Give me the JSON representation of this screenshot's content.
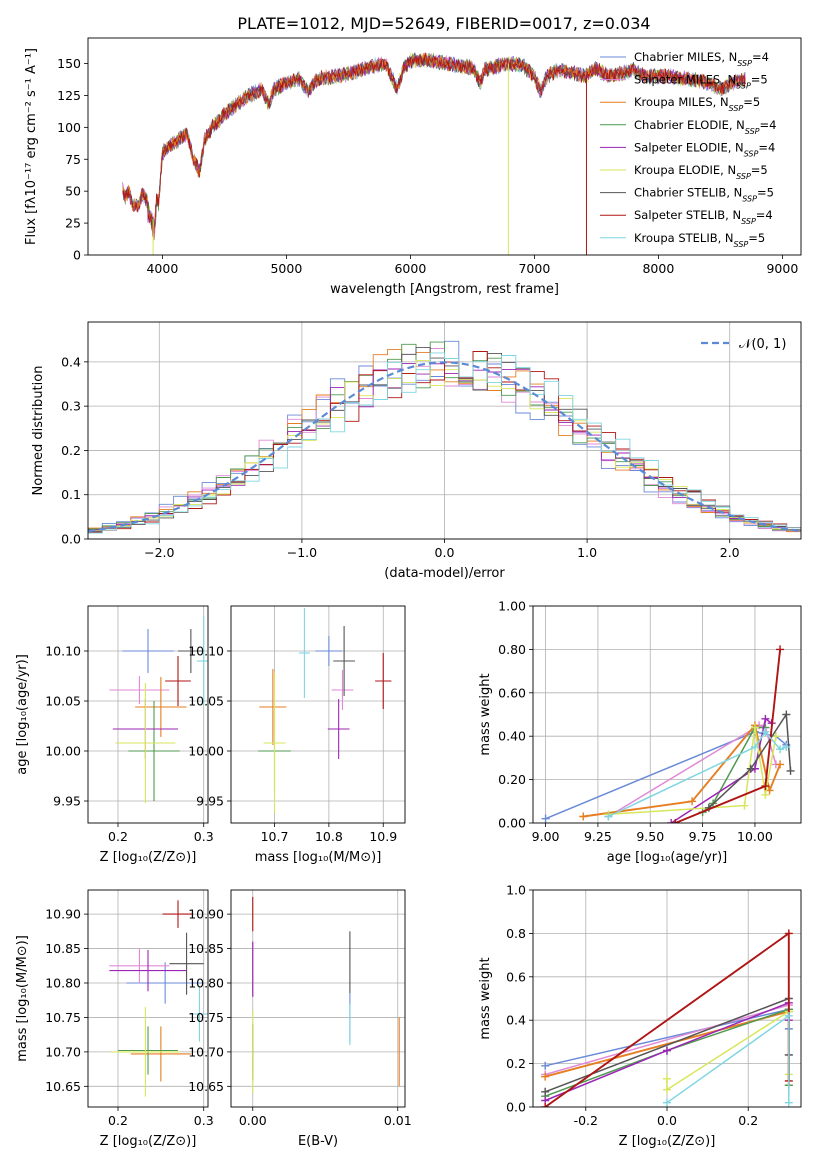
{
  "title": "PLATE=1012, MJD=52649, FIBERID=0017, z=0.034",
  "colors": [
    "#6a8ad8",
    "#e08ad6",
    "#e67e22",
    "#4f9a4f",
    "#9b26b6",
    "#d7e65a",
    "#555555",
    "#b01515",
    "#7fd6e0"
  ],
  "legend_models": [
    {
      "name": "Chabrier MILES",
      "nssp": "4"
    },
    {
      "name": "Salpeter MILES",
      "nssp": "5"
    },
    {
      "name": "Kroupa MILES",
      "nssp": "5"
    },
    {
      "name": "Chabrier ELODIE",
      "nssp": "4"
    },
    {
      "name": "Salpeter ELODIE",
      "nssp": "4"
    },
    {
      "name": "Kroupa ELODIE",
      "nssp": "5"
    },
    {
      "name": "Chabrier STELIB",
      "nssp": "5"
    },
    {
      "name": "Salpeter STELIB",
      "nssp": "4"
    },
    {
      "name": "Kroupa STELIB",
      "nssp": "5"
    }
  ],
  "legend_sub": "SSP",
  "chart_data": [
    {
      "id": "spectrum",
      "type": "line",
      "xlabel": "wavelength [Angstrom, rest frame]",
      "ylabel": "Flux [fλ10⁻¹⁷ erg cm⁻² s⁻¹ A⁻¹]",
      "xlim": [
        3400,
        9150
      ],
      "ylim": [
        0,
        170
      ],
      "xticks": [
        4000,
        5000,
        6000,
        7000,
        8000,
        9000
      ],
      "yticks": [
        0,
        25,
        50,
        75,
        100,
        125,
        150
      ],
      "x": [
        3680,
        3700,
        3730,
        3760,
        3800,
        3840,
        3880,
        3920,
        3934,
        3950,
        3969,
        4000,
        4050,
        4100,
        4150,
        4200,
        4250,
        4300,
        4340,
        4400,
        4500,
        4600,
        4700,
        4800,
        4861,
        4900,
        5000,
        5100,
        5175,
        5250,
        5400,
        5500,
        5600,
        5700,
        5800,
        5893,
        5950,
        6000,
        6100,
        6200,
        6300,
        6400,
        6500,
        6563,
        6600,
        6700,
        6800,
        6900,
        7000,
        7050,
        7100,
        7200,
        7300,
        7400,
        7500,
        7600,
        7700,
        7800,
        7900,
        8000,
        8100,
        8200,
        8300,
        8400,
        8500,
        8600,
        8700
      ],
      "y": [
        52,
        45,
        50,
        40,
        38,
        48,
        42,
        30,
        25,
        45,
        40,
        80,
        85,
        88,
        92,
        95,
        75,
        65,
        90,
        100,
        110,
        118,
        125,
        130,
        118,
        130,
        135,
        138,
        128,
        138,
        140,
        142,
        145,
        148,
        150,
        130,
        148,
        152,
        153,
        152,
        150,
        148,
        147,
        135,
        145,
        148,
        150,
        149,
        140,
        128,
        140,
        145,
        143,
        140,
        146,
        140,
        142,
        145,
        140,
        140,
        140,
        138,
        137,
        135,
        130,
        135,
        138
      ],
      "dips": [
        {
          "x": 6790,
          "to": 0,
          "series": 5
        },
        {
          "x": 7420,
          "to": 0,
          "series": 7
        },
        {
          "x": 3925,
          "to": 0,
          "series": 5
        }
      ]
    },
    {
      "id": "residuals",
      "type": "step",
      "xlabel": "(data-model)/error",
      "ylabel": "Normed distribution",
      "xlim": [
        -2.5,
        2.5
      ],
      "ylim": [
        0,
        0.49
      ],
      "xticks": [
        -2,
        -1,
        0,
        1,
        2
      ],
      "yticks": [
        0.0,
        0.1,
        0.2,
        0.3,
        0.4
      ],
      "grid": true,
      "legend": "𝒩(0, 1)",
      "bin_width": 0.1
    },
    {
      "id": "age-vs-Z",
      "type": "errorbar",
      "xlabel": "Z [log₁₀(Z/Z⊙)]",
      "ylabel": "age  [log₁₀(age/yr)]",
      "xlim": [
        0.165,
        0.305
      ],
      "ylim": [
        9.928,
        10.145
      ],
      "xticks": [
        0.2,
        0.3
      ],
      "yticks": [
        9.95,
        10.0,
        10.05,
        10.1
      ],
      "points": [
        {
          "x": 0.235,
          "y": 10.1,
          "xe": 0.03,
          "ye": 0.022
        },
        {
          "x": 0.225,
          "y": 10.061,
          "xe": 0.035,
          "ye": 0.014
        },
        {
          "x": 0.25,
          "y": 10.044,
          "xe": 0.03,
          "ye": 0.03
        },
        {
          "x": 0.242,
          "y": 10.0,
          "xe": 0.03,
          "ye": 0.05
        },
        {
          "x": 0.232,
          "y": 10.022,
          "xe": 0.038,
          "ye": 0.03
        },
        {
          "x": 0.232,
          "y": 10.008,
          "xe": 0.035,
          "ye": 0.06
        },
        {
          "x": 0.285,
          "y": 10.1,
          "xe": 0.015,
          "ye": 0.022
        },
        {
          "x": 0.27,
          "y": 10.07,
          "xe": 0.015,
          "ye": 0.025
        },
        {
          "x": 0.3,
          "y": 10.09,
          "xe": 0.008,
          "ye": 0.045
        }
      ]
    },
    {
      "id": "age-vs-mass",
      "type": "errorbar",
      "xlabel": "mass [log₁₀(M/M⊙)]",
      "ylabel": "",
      "xlim": [
        10.62,
        10.94
      ],
      "ylim": [
        9.928,
        10.145
      ],
      "xticks": [
        10.7,
        10.8,
        10.9
      ],
      "yticks": [
        9.95,
        10.0,
        10.05,
        10.1
      ],
      "points": [
        {
          "x": 10.8,
          "y": 10.1,
          "xe": 0.025,
          "ye": 0.015
        },
        {
          "x": 10.825,
          "y": 10.061,
          "xe": 0.02,
          "ye": 0.02
        },
        {
          "x": 10.697,
          "y": 10.044,
          "xe": 0.025,
          "ye": 0.038
        },
        {
          "x": 10.7,
          "y": 10.0,
          "xe": 0.03,
          "ye": 0.04
        },
        {
          "x": 10.818,
          "y": 10.022,
          "xe": 0.02,
          "ye": 0.03
        },
        {
          "x": 10.7,
          "y": 10.008,
          "xe": 0.02,
          "ye": 0.07
        },
        {
          "x": 10.828,
          "y": 10.09,
          "xe": 0.02,
          "ye": 0.035
        },
        {
          "x": 10.9,
          "y": 10.07,
          "xe": 0.015,
          "ye": 0.028
        },
        {
          "x": 10.755,
          "y": 10.098,
          "xe": 0.01,
          "ye": 0.045
        }
      ]
    },
    {
      "id": "weight-vs-age",
      "type": "line",
      "xlabel": "age  [log₁₀(age/yr)]",
      "ylabel": "mass weight",
      "xlim": [
        8.94,
        10.22
      ],
      "ylim": [
        0,
        1.0
      ],
      "xticks": [
        9.0,
        9.25,
        9.5,
        9.75,
        10.0
      ],
      "yticks": [
        0.0,
        0.2,
        0.4,
        0.6,
        0.8,
        1.0
      ],
      "grid": true,
      "series": [
        {
          "x": [
            9.0,
            10.0,
            10.1,
            10.15
          ],
          "y": [
            0.02,
            0.42,
            0.4,
            0.36
          ]
        },
        {
          "x": [
            9.3,
            10.02,
            10.05,
            10.1
          ],
          "y": [
            0.03,
            0.45,
            0.44,
            0.27
          ]
        },
        {
          "x": [
            9.18,
            9.7,
            10.0,
            10.07,
            10.12
          ],
          "y": [
            0.03,
            0.1,
            0.45,
            0.15,
            0.27
          ]
        },
        {
          "x": [
            9.75,
            9.8,
            10.0,
            10.05
          ],
          "y": [
            0.05,
            0.09,
            0.44,
            0.44
          ]
        },
        {
          "x": [
            9.6,
            10.0,
            10.05,
            10.08
          ],
          "y": [
            0.0,
            0.25,
            0.48,
            0.46
          ]
        },
        {
          "x": [
            9.3,
            9.95,
            10.0,
            10.05,
            10.1
          ],
          "y": [
            0.04,
            0.08,
            0.44,
            0.13,
            0.4
          ]
        },
        {
          "x": [
            9.78,
            9.98,
            10.15,
            10.17
          ],
          "y": [
            0.07,
            0.25,
            0.5,
            0.24
          ]
        },
        {
          "x": [
            9.62,
            10.05,
            10.12
          ],
          "y": [
            0.0,
            0.17,
            0.8
          ]
        },
        {
          "x": [
            9.3,
            10.0,
            10.05,
            10.12,
            10.15
          ],
          "y": [
            0.03,
            0.35,
            0.42,
            0.34,
            0.35
          ]
        }
      ]
    },
    {
      "id": "mass-vs-Z",
      "type": "errorbar",
      "xlabel": "Z [log₁₀(Z/Z⊙)]",
      "ylabel": "mass [log₁₀(M/M⊙)]",
      "xlim": [
        0.165,
        0.305
      ],
      "ylim": [
        10.62,
        10.935
      ],
      "xticks": [
        0.2,
        0.3
      ],
      "yticks": [
        10.65,
        10.7,
        10.75,
        10.8,
        10.85,
        10.9
      ],
      "points": [
        {
          "x": 0.255,
          "y": 10.8,
          "xe": 0.045,
          "ye": 0.03
        },
        {
          "x": 0.225,
          "y": 10.825,
          "xe": 0.035,
          "ye": 0.025
        },
        {
          "x": 0.25,
          "y": 10.697,
          "xe": 0.035,
          "ye": 0.04
        },
        {
          "x": 0.235,
          "y": 10.702,
          "xe": 0.035,
          "ye": 0.035
        },
        {
          "x": 0.235,
          "y": 10.818,
          "xe": 0.045,
          "ye": 0.03
        },
        {
          "x": 0.232,
          "y": 10.7,
          "xe": 0.04,
          "ye": 0.065
        },
        {
          "x": 0.28,
          "y": 10.828,
          "xe": 0.02,
          "ye": 0.045
        },
        {
          "x": 0.27,
          "y": 10.9,
          "xe": 0.018,
          "ye": 0.02
        },
        {
          "x": 0.295,
          "y": 10.755,
          "xe": 0.012,
          "ye": 0.04
        }
      ]
    },
    {
      "id": "mass-vs-ebv",
      "type": "errorbar",
      "xlabel": "E(B-V)",
      "ylabel": "",
      "xlim": [
        -0.0015,
        0.0105
      ],
      "ylim": [
        10.62,
        10.935
      ],
      "xticks": [
        0.0,
        0.01
      ],
      "yticks": [
        10.65,
        10.7,
        10.75,
        10.8,
        10.85,
        10.9
      ],
      "tick_labels_x": [
        "0.00",
        "0.01"
      ],
      "points": [
        {
          "x": 0.0067,
          "y": 10.75,
          "xe": 0,
          "ye": 0.035
        },
        {
          "x": 0.0,
          "y": 10.82,
          "xe": 0,
          "ye": 0.04
        },
        {
          "x": 0.0101,
          "y": 10.7,
          "xe": 0,
          "ye": 0.05
        },
        {
          "x": 0.0,
          "y": 10.7,
          "xe": 0,
          "ye": 0.04
        },
        {
          "x": 0.0,
          "y": 10.82,
          "xe": 0,
          "ye": 0.04
        },
        {
          "x": 0.0,
          "y": 10.7,
          "xe": 0,
          "ye": 0.06
        },
        {
          "x": 0.0067,
          "y": 10.83,
          "xe": 0,
          "ye": 0.045
        },
        {
          "x": 0.0,
          "y": 10.9,
          "xe": 0,
          "ye": 0.025
        },
        {
          "x": 0.0067,
          "y": 10.74,
          "xe": 0,
          "ye": 0.03
        }
      ]
    },
    {
      "id": "weight-vs-Z",
      "type": "line",
      "xlabel": "Z [log₁₀(Z/Z⊙)]",
      "ylabel": "mass weight",
      "xlim": [
        -0.33,
        0.33
      ],
      "ylim": [
        0,
        1.0
      ],
      "xticks": [
        -0.2,
        0.0,
        0.2
      ],
      "yticks": [
        0.0,
        0.2,
        0.4,
        0.6,
        0.8,
        1.0
      ],
      "grid": true,
      "series": [
        {
          "x": [
            -0.3,
            0.3,
            0.3
          ],
          "y": [
            0.19,
            0.45,
            0.36
          ]
        },
        {
          "x": [
            -0.3,
            0.3,
            0.3
          ],
          "y": [
            0.15,
            0.47,
            0.24
          ]
        },
        {
          "x": [
            -0.3,
            0.3,
            0.3
          ],
          "y": [
            0.14,
            0.44,
            0.1
          ]
        },
        {
          "x": [
            -0.3,
            0.0,
            0.3,
            0.3
          ],
          "y": [
            0.05,
            0.26,
            0.45,
            0.1
          ]
        },
        {
          "x": [
            -0.3,
            0.0,
            0.3,
            0.3
          ],
          "y": [
            0.03,
            0.26,
            0.48,
            0.4
          ]
        },
        {
          "x": [
            0.0,
            0.0,
            0.3,
            0.3
          ],
          "y": [
            0.13,
            0.08,
            0.44,
            0.15
          ]
        },
        {
          "x": [
            -0.3,
            0.3,
            0.3
          ],
          "y": [
            0.07,
            0.5,
            0.24
          ]
        },
        {
          "x": [
            -0.3,
            0.3,
            0.3
          ],
          "y": [
            0.0,
            0.8,
            0.12
          ]
        },
        {
          "x": [
            0.0,
            0.3,
            0.3
          ],
          "y": [
            0.02,
            0.42,
            0.02
          ]
        }
      ]
    }
  ]
}
